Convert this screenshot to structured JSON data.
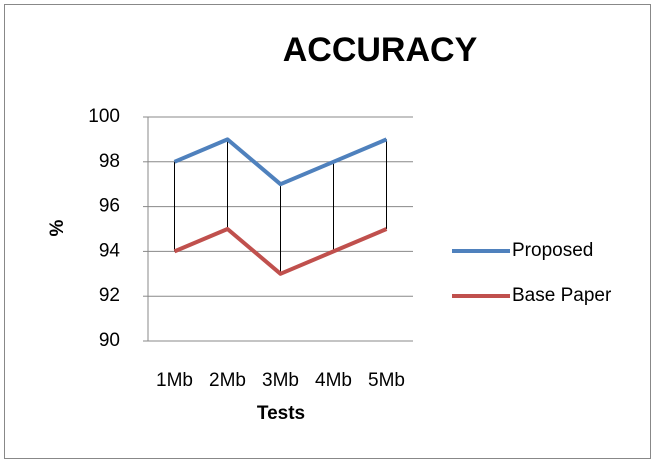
{
  "chart_data": {
    "type": "line",
    "title": "ACCURACY",
    "x_label": "Tests",
    "y_label": "%",
    "categories": [
      "1Mb",
      "2Mb",
      "3Mb",
      "4Mb",
      "5Mb"
    ],
    "series": [
      {
        "name": "Proposed",
        "color": "#4f81bd",
        "values": [
          98,
          99,
          97,
          98,
          99
        ]
      },
      {
        "name": "Base Paper",
        "color": "#c0504d",
        "values": [
          94,
          95,
          93,
          94,
          95
        ]
      }
    ],
    "ylim": [
      90,
      100
    ],
    "yticks": [
      90,
      92,
      94,
      96,
      98,
      100
    ],
    "grid": true,
    "legend": "right",
    "high_low_lines": true
  }
}
